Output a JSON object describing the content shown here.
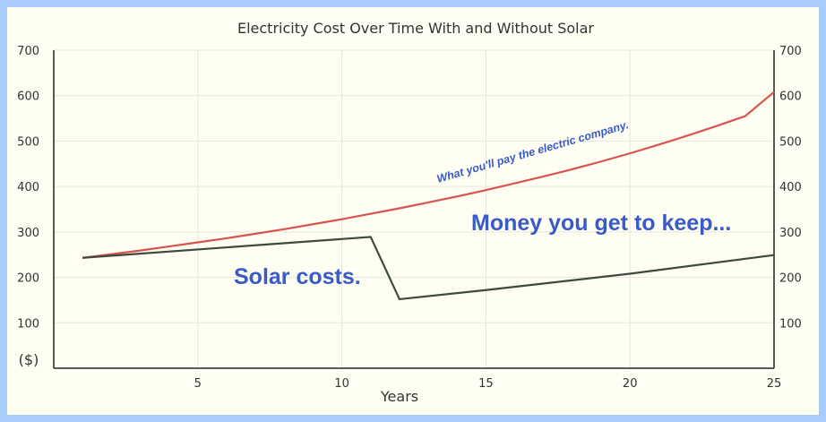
{
  "chart_data": {
    "type": "line",
    "title": "Electricity Cost Over Time With and Without Solar",
    "xlabel": "Years",
    "ylabel": "($)",
    "xlim": [
      0,
      25
    ],
    "ylim": [
      0,
      700
    ],
    "x_ticks": [
      5,
      10,
      15,
      20,
      25
    ],
    "y_ticks_left": [
      100,
      200,
      300,
      400,
      500,
      600,
      700
    ],
    "y_ticks_right": [
      100,
      200,
      300,
      400,
      500,
      600,
      700
    ],
    "grid": true,
    "series": [
      {
        "color": "#d9534f",
        "points": [
          [
            1,
            243
          ],
          [
            2,
            251
          ],
          [
            3,
            259
          ],
          [
            4,
            268
          ],
          [
            5,
            277
          ],
          [
            6,
            286
          ],
          [
            7,
            296
          ],
          [
            8,
            306
          ],
          [
            9,
            317
          ],
          [
            10,
            328
          ],
          [
            11,
            340
          ],
          [
            12,
            352
          ],
          [
            13,
            365
          ],
          [
            14,
            378
          ],
          [
            15,
            392
          ],
          [
            16,
            407
          ],
          [
            17,
            422
          ],
          [
            18,
            438
          ],
          [
            19,
            455
          ],
          [
            20,
            473
          ],
          [
            21,
            492
          ],
          [
            22,
            512
          ],
          [
            23,
            533
          ],
          [
            24,
            555
          ],
          [
            25,
            608
          ]
        ]
      },
      {
        "color": "#3d4a3d",
        "points": [
          [
            1,
            243
          ],
          [
            11,
            289
          ],
          [
            12,
            152
          ],
          [
            15,
            172
          ],
          [
            20,
            208
          ],
          [
            25,
            249
          ]
        ]
      }
    ],
    "annotations": [
      {
        "text": "What you'll pay the electric company.",
        "style": "small"
      },
      {
        "text": "Money you get to keep...",
        "style": "big"
      },
      {
        "text": "Solar costs.",
        "style": "big"
      }
    ]
  }
}
